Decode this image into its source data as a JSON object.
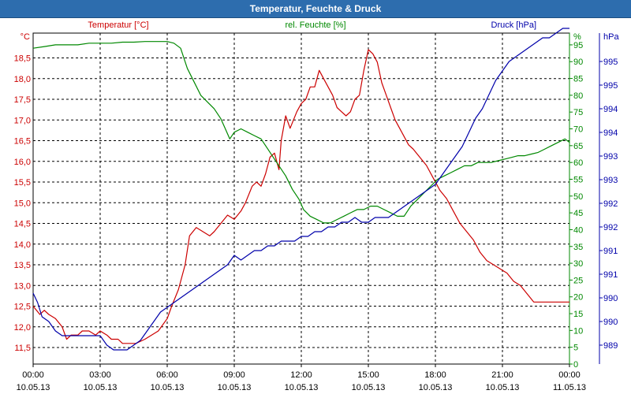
{
  "title": "Temperatur, Feuchte & Druck",
  "colors": {
    "title_bar": "#2d6dae",
    "temperature": "#cc0000",
    "humidity": "#008800",
    "pressure": "#0000aa",
    "grid": "#000000"
  },
  "chart_data": {
    "type": "line",
    "title": "Temperatur, Feuchte & Druck",
    "x_ticks": [
      {
        "time": "00:00",
        "date": "10.05.13"
      },
      {
        "time": "03:00",
        "date": "10.05.13"
      },
      {
        "time": "06:00",
        "date": "10.05.13"
      },
      {
        "time": "09:00",
        "date": "10.05.13"
      },
      {
        "time": "12:00",
        "date": "10.05.13"
      },
      {
        "time": "15:00",
        "date": "10.05.13"
      },
      {
        "time": "18:00",
        "date": "10.05.13"
      },
      {
        "time": "21:00",
        "date": "10.05.13"
      },
      {
        "time": "00:00",
        "date": "11.05.13"
      }
    ],
    "xlim_hours": [
      0,
      24
    ],
    "axes": {
      "temperature": {
        "label": "Temperatur [°C]",
        "unit": "°C",
        "ylim": [
          11.1,
          19.1
        ],
        "ticks": [
          "11,5",
          "12,0",
          "12,5",
          "13,0",
          "13,5",
          "14,0",
          "14,5",
          "15,0",
          "15,5",
          "16,0",
          "16,5",
          "17,0",
          "17,5",
          "18,0",
          "18,5"
        ]
      },
      "humidity": {
        "label": "rel. Feuchte [%]",
        "unit": "%",
        "ylim": [
          0,
          98.5
        ],
        "ticks": [
          "0",
          "5",
          "10",
          "15",
          "20",
          "25",
          "30",
          "35",
          "40",
          "45",
          "50",
          "55",
          "60",
          "65",
          "70",
          "75",
          "80",
          "85",
          "90",
          "95"
        ]
      },
      "pressure": {
        "label": "Druck [hPa]",
        "unit": "hPa",
        "ylim": [
          988.6,
          995.6
        ],
        "ticks": [
          {
            "v": 989.0,
            "label": "989"
          },
          {
            "v": 989.5,
            "label": "990"
          },
          {
            "v": 990.0,
            "label": "990"
          },
          {
            "v": 990.5,
            "label": "991"
          },
          {
            "v": 991.0,
            "label": "991"
          },
          {
            "v": 991.5,
            "label": "992"
          },
          {
            "v": 992.0,
            "label": "992"
          },
          {
            "v": 992.5,
            "label": "993"
          },
          {
            "v": 993.0,
            "label": "993"
          },
          {
            "v": 993.5,
            "label": "994"
          },
          {
            "v": 994.0,
            "label": "994"
          },
          {
            "v": 994.5,
            "label": "995"
          },
          {
            "v": 995.0,
            "label": "995"
          }
        ]
      }
    },
    "series": [
      {
        "name": "Temperatur",
        "axis": "temperature",
        "x": [
          0,
          0.3,
          0.5,
          0.7,
          1.0,
          1.3,
          1.5,
          1.7,
          2.0,
          2.2,
          2.5,
          2.8,
          3.0,
          3.3,
          3.5,
          3.8,
          4.0,
          4.3,
          4.6,
          5.0,
          5.3,
          5.6,
          6.0,
          6.2,
          6.5,
          6.8,
          7.0,
          7.3,
          7.6,
          7.9,
          8.1,
          8.4,
          8.7,
          9.0,
          9.3,
          9.5,
          9.8,
          10.0,
          10.2,
          10.4,
          10.6,
          10.8,
          11.0,
          11.1,
          11.3,
          11.5,
          11.8,
          12.0,
          12.2,
          12.4,
          12.6,
          12.8,
          13.0,
          13.2,
          13.4,
          13.6,
          13.8,
          14.0,
          14.2,
          14.4,
          14.6,
          14.8,
          15.0,
          15.2,
          15.4,
          15.6,
          15.8,
          16.0,
          16.2,
          16.4,
          16.6,
          16.8,
          17.0,
          17.3,
          17.6,
          17.9,
          18.2,
          18.5,
          18.8,
          19.1,
          19.4,
          19.7,
          20.0,
          20.3,
          20.6,
          20.9,
          21.2,
          21.5,
          21.8,
          22.1,
          22.4,
          22.7,
          23.0,
          23.2,
          23.4,
          23.6,
          23.8,
          24.0
        ],
        "y": [
          12.5,
          12.3,
          12.4,
          12.3,
          12.2,
          12.0,
          11.7,
          11.8,
          11.8,
          11.9,
          11.9,
          11.8,
          11.9,
          11.8,
          11.7,
          11.7,
          11.6,
          11.6,
          11.6,
          11.7,
          11.8,
          11.9,
          12.2,
          12.5,
          12.9,
          13.5,
          14.2,
          14.4,
          14.3,
          14.2,
          14.3,
          14.5,
          14.7,
          14.6,
          14.8,
          15.0,
          15.4,
          15.5,
          15.4,
          15.7,
          16.1,
          16.2,
          15.8,
          16.5,
          17.1,
          16.8,
          17.2,
          17.4,
          17.5,
          17.8,
          17.8,
          18.2,
          18.0,
          17.8,
          17.6,
          17.3,
          17.2,
          17.1,
          17.2,
          17.5,
          17.6,
          18.2,
          18.7,
          18.6,
          18.4,
          17.9,
          17.6,
          17.3,
          17.0,
          16.8,
          16.6,
          16.4,
          16.3,
          16.1,
          15.9,
          15.6,
          15.3,
          15.1,
          14.8,
          14.5,
          14.3,
          14.1,
          13.8,
          13.6,
          13.5,
          13.4,
          13.3,
          13.1,
          13.0,
          12.8,
          12.6,
          12.6,
          12.6,
          12.6,
          12.6,
          12.6,
          12.6,
          12.6
        ]
      },
      {
        "name": "rel. Feuchte",
        "axis": "humidity",
        "x": [
          0,
          0.5,
          1.0,
          1.5,
          2.0,
          2.5,
          3.0,
          3.5,
          4.0,
          4.5,
          5.0,
          5.5,
          6.0,
          6.3,
          6.6,
          6.9,
          7.2,
          7.5,
          7.8,
          8.1,
          8.4,
          8.6,
          8.8,
          9.0,
          9.3,
          9.6,
          9.9,
          10.2,
          10.5,
          10.8,
          11.0,
          11.3,
          11.6,
          11.9,
          12.1,
          12.4,
          12.7,
          13.0,
          13.3,
          13.6,
          13.9,
          14.2,
          14.5,
          14.8,
          15.1,
          15.4,
          15.7,
          16.0,
          16.3,
          16.6,
          16.9,
          17.2,
          17.5,
          17.8,
          18.1,
          18.4,
          18.7,
          19.0,
          19.3,
          19.6,
          19.9,
          20.2,
          20.5,
          20.8,
          21.1,
          21.4,
          21.7,
          22.0,
          22.3,
          22.6,
          22.9,
          23.2,
          23.5,
          23.8,
          24.0
        ],
        "y": [
          94,
          94.5,
          95,
          95,
          95,
          95.5,
          95.5,
          95.5,
          95.8,
          95.8,
          96,
          96,
          96,
          95.5,
          94,
          88,
          84,
          80,
          78,
          76,
          73,
          70,
          67,
          69,
          70,
          69,
          68,
          67,
          64,
          61,
          59,
          56,
          52,
          49,
          46,
          44,
          43,
          42,
          42,
          43,
          44,
          45,
          46,
          46,
          47,
          47,
          46,
          45,
          44,
          44,
          47,
          49,
          51,
          53,
          55,
          56,
          57,
          58,
          59,
          59,
          60,
          60,
          60,
          60.5,
          61,
          61.5,
          62,
          62,
          62.5,
          63,
          64,
          65,
          66,
          67,
          66
        ]
      },
      {
        "name": "Druck",
        "axis": "pressure",
        "x": [
          0,
          0.2,
          0.4,
          0.7,
          1.0,
          1.3,
          1.6,
          2.0,
          2.3,
          2.6,
          3.0,
          3.3,
          3.6,
          3.9,
          4.2,
          4.5,
          4.8,
          5.1,
          5.4,
          5.7,
          6.0,
          6.3,
          6.6,
          6.9,
          7.2,
          7.5,
          7.8,
          8.1,
          8.4,
          8.7,
          9.0,
          9.3,
          9.6,
          9.9,
          10.2,
          10.5,
          10.8,
          11.1,
          11.4,
          11.7,
          12.0,
          12.3,
          12.6,
          12.9,
          13.2,
          13.5,
          13.8,
          14.1,
          14.4,
          14.7,
          15.0,
          15.3,
          15.6,
          15.9,
          16.2,
          16.5,
          16.8,
          17.1,
          17.4,
          17.7,
          18.0,
          18.3,
          18.6,
          18.9,
          19.2,
          19.5,
          19.8,
          20.1,
          20.4,
          20.7,
          21.0,
          21.3,
          21.6,
          21.9,
          22.2,
          22.5,
          22.8,
          23.1,
          23.4,
          23.7,
          24.0
        ],
        "y": [
          990.1,
          989.9,
          989.6,
          989.5,
          989.3,
          989.2,
          989.2,
          989.2,
          989.2,
          989.2,
          989.2,
          989.0,
          988.9,
          988.9,
          988.9,
          989.0,
          989.1,
          989.3,
          989.5,
          989.7,
          989.8,
          989.9,
          990.0,
          990.1,
          990.2,
          990.3,
          990.4,
          990.5,
          990.6,
          990.7,
          990.9,
          990.8,
          990.9,
          991.0,
          991.0,
          991.1,
          991.1,
          991.2,
          991.2,
          991.2,
          991.3,
          991.3,
          991.4,
          991.4,
          991.5,
          991.5,
          991.6,
          991.6,
          991.7,
          991.6,
          991.6,
          991.7,
          991.7,
          991.7,
          991.8,
          991.9,
          992.0,
          992.1,
          992.2,
          992.3,
          992.4,
          992.6,
          992.8,
          993.0,
          993.2,
          993.5,
          993.8,
          994.0,
          994.3,
          994.6,
          994.8,
          995.0,
          995.1,
          995.2,
          995.3,
          995.4,
          995.5,
          995.5,
          995.6,
          995.7,
          995.7
        ]
      }
    ]
  }
}
